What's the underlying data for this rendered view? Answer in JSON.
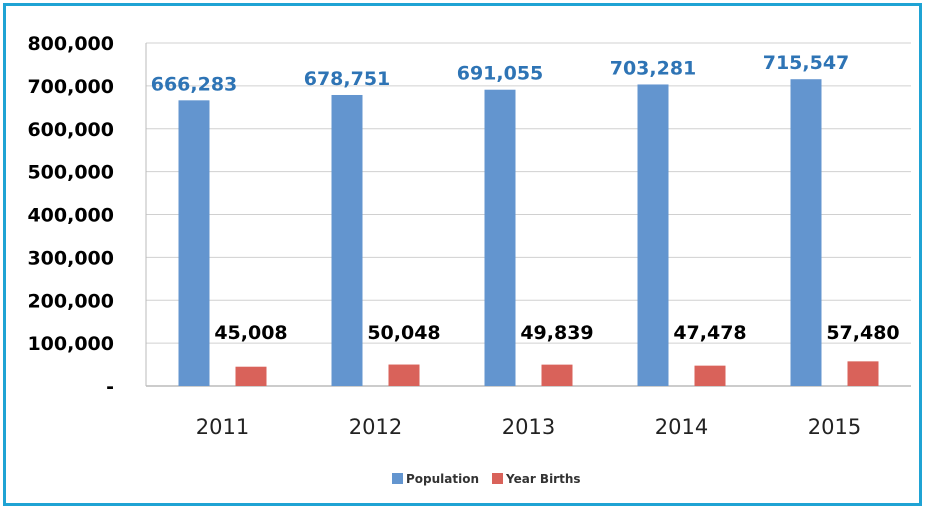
{
  "chart_data": {
    "type": "bar",
    "title": "",
    "xlabel": "",
    "ylabel": "",
    "categories": [
      "2011",
      "2012",
      "2013",
      "2014",
      "2015"
    ],
    "series": [
      {
        "name": "Population",
        "color": "#6395cf",
        "label_color": "#2e74b5",
        "values": [
          666283,
          678751,
          691055,
          703281,
          715547
        ],
        "labels": [
          "666,283",
          "678,751",
          "691,055",
          "703,281",
          "715,547"
        ]
      },
      {
        "name": "Year Births",
        "color": "#d9625a",
        "label_color": "#000000",
        "values": [
          45008,
          50048,
          49839,
          47478,
          57480
        ],
        "labels": [
          "45,008",
          "50,048",
          "49,839",
          "47,478",
          "57,480"
        ]
      }
    ],
    "ylim": [
      0,
      800000
    ],
    "yticks": [
      0,
      100000,
      200000,
      300000,
      400000,
      500000,
      600000,
      700000,
      800000
    ],
    "ytick_labels": [
      "-",
      "100,000",
      "200,000",
      "300,000",
      "400,000",
      "500,000",
      "600,000",
      "700,000",
      "800,000"
    ],
    "grid": true,
    "legend": "bottom-center"
  }
}
